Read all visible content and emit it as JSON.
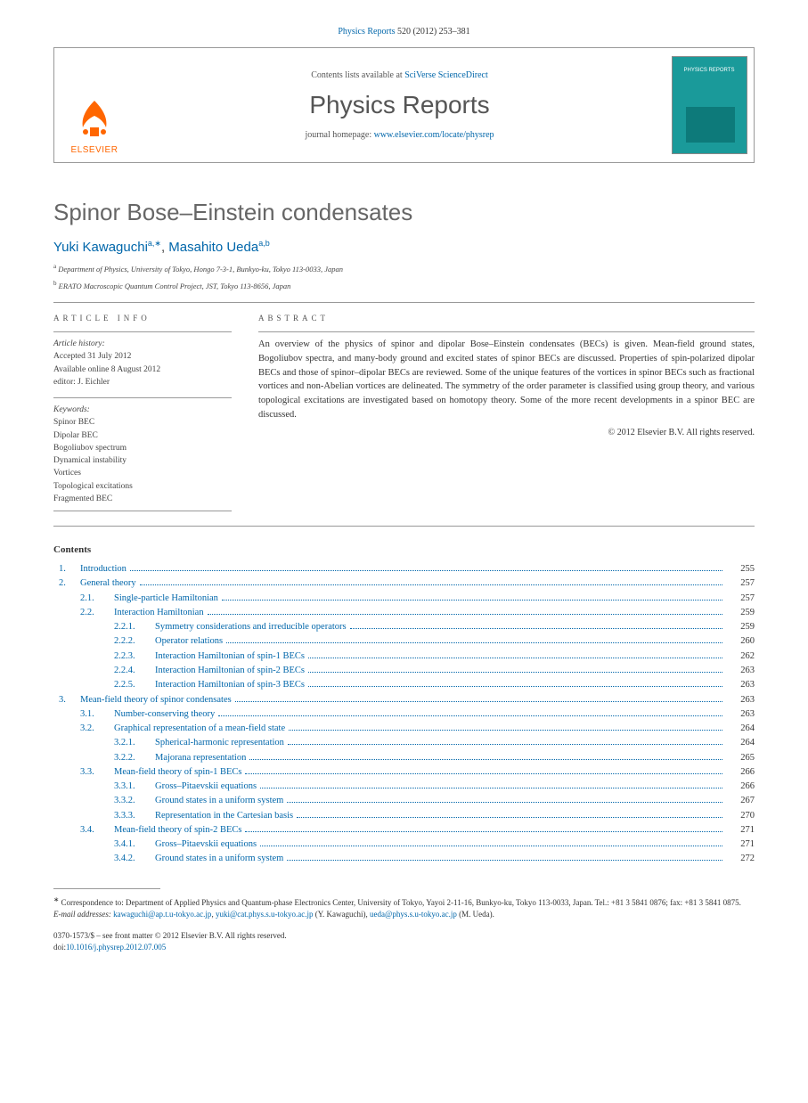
{
  "citation": {
    "journal": "Physics Reports",
    "ref": "520 (2012) 253–381"
  },
  "header": {
    "contents_prefix": "Contents lists available at ",
    "contents_link": "SciVerse ScienceDirect",
    "journal_name": "Physics Reports",
    "homepage_prefix": "journal homepage: ",
    "homepage_link": "www.elsevier.com/locate/physrep",
    "logo_text": "ELSEVIER",
    "cover_text": "PHYSICS REPORTS"
  },
  "article": {
    "title": "Spinor Bose–Einstein condensates",
    "authors_html": "Yuki Kawaguchi",
    "author1": "Yuki Kawaguchi",
    "author1_sup": "a,∗",
    "author2": "Masahito Ueda",
    "author2_sup": "a,b",
    "sep": ", "
  },
  "affiliations": {
    "a": "Department of Physics, University of Tokyo, Hongo 7-3-1, Bunkyo-ku, Tokyo 113-0033, Japan",
    "b": "ERATO Macroscopic Quantum Control Project, JST, Tokyo 113-8656, Japan"
  },
  "info": {
    "head": "article info",
    "history_label": "Article history:",
    "accepted": "Accepted 31 July 2012",
    "online": "Available online 8 August 2012",
    "editor": "editor: J. Eichler",
    "keywords_label": "Keywords:",
    "keywords": [
      "Spinor BEC",
      "Dipolar BEC",
      "Bogoliubov spectrum",
      "Dynamical instability",
      "Vortices",
      "Topological excitations",
      "Fragmented BEC"
    ]
  },
  "abstract": {
    "head": "abstract",
    "text": "An overview of the physics of spinor and dipolar Bose–Einstein condensates (BECs) is given. Mean-field ground states, Bogoliubov spectra, and many-body ground and excited states of spinor BECs are discussed. Properties of spin-polarized dipolar BECs and those of spinor–dipolar BECs are reviewed. Some of the unique features of the vortices in spinor BECs such as fractional vortices and non-Abelian vortices are delineated. The symmetry of the order parameter is classified using group theory, and various topological excitations are investigated based on homotopy theory. Some of the more recent developments in a spinor BEC are discussed.",
    "copyright": "© 2012 Elsevier B.V. All rights reserved."
  },
  "contents_label": "Contents",
  "toc": [
    {
      "level": 1,
      "num": "1.",
      "title": "Introduction",
      "page": "255"
    },
    {
      "level": 1,
      "num": "2.",
      "title": "General theory",
      "page": "257"
    },
    {
      "level": 2,
      "num": "2.1.",
      "title": "Single-particle Hamiltonian",
      "page": "257"
    },
    {
      "level": 2,
      "num": "2.2.",
      "title": "Interaction Hamiltonian",
      "page": "259"
    },
    {
      "level": 3,
      "num": "2.2.1.",
      "title": "Symmetry considerations and irreducible operators",
      "page": "259"
    },
    {
      "level": 3,
      "num": "2.2.2.",
      "title": "Operator relations",
      "page": "260"
    },
    {
      "level": 3,
      "num": "2.2.3.",
      "title": "Interaction Hamiltonian of spin-1 BECs",
      "page": "262"
    },
    {
      "level": 3,
      "num": "2.2.4.",
      "title": "Interaction Hamiltonian of spin-2 BECs",
      "page": "263"
    },
    {
      "level": 3,
      "num": "2.2.5.",
      "title": "Interaction Hamiltonian of spin-3 BECs",
      "page": "263"
    },
    {
      "level": 1,
      "num": "3.",
      "title": "Mean-field theory of spinor condensates",
      "page": "263"
    },
    {
      "level": 2,
      "num": "3.1.",
      "title": "Number-conserving theory",
      "page": "263"
    },
    {
      "level": 2,
      "num": "3.2.",
      "title": "Graphical representation of a mean-field state",
      "page": "264"
    },
    {
      "level": 3,
      "num": "3.2.1.",
      "title": "Spherical-harmonic representation",
      "page": "264"
    },
    {
      "level": 3,
      "num": "3.2.2.",
      "title": "Majorana representation",
      "page": "265"
    },
    {
      "level": 2,
      "num": "3.3.",
      "title": "Mean-field theory of spin-1 BECs",
      "page": "266"
    },
    {
      "level": 3,
      "num": "3.3.1.",
      "title": "Gross–Pitaevskii equations",
      "page": "266"
    },
    {
      "level": 3,
      "num": "3.3.2.",
      "title": "Ground states in a uniform system",
      "page": "267"
    },
    {
      "level": 3,
      "num": "3.3.3.",
      "title": "Representation in the Cartesian basis",
      "page": "270"
    },
    {
      "level": 2,
      "num": "3.4.",
      "title": "Mean-field theory of spin-2 BECs",
      "page": "271"
    },
    {
      "level": 3,
      "num": "3.4.1.",
      "title": "Gross–Pitaevskii equations",
      "page": "271"
    },
    {
      "level": 3,
      "num": "3.4.2.",
      "title": "Ground states in a uniform system",
      "page": "272"
    }
  ],
  "footnote": {
    "corr_label": "∗",
    "corr_text": "Correspondence to: Department of Applied Physics and Quantum-phase Electronics Center, University of Tokyo, Yayoi 2-11-16, Bunkyo-ku, Tokyo 113-0033, Japan. Tel.: +81 3 5841 0876; fax: +81 3 5841 0875.",
    "email_label": "E-mail addresses:",
    "email1": "kawaguchi@ap.t.u-tokyo.ac.jp",
    "email2": "yuki@cat.phys.s.u-tokyo.ac.jp",
    "email_paren1": "(Y. Kawaguchi),",
    "email3": "ueda@phys.s.u-tokyo.ac.jp",
    "email_paren2": "(M. Ueda)."
  },
  "footer": {
    "issn": "0370-1573/$ – see front matter © 2012 Elsevier B.V. All rights reserved.",
    "doi_label": "doi:",
    "doi": "10.1016/j.physrep.2012.07.005"
  }
}
